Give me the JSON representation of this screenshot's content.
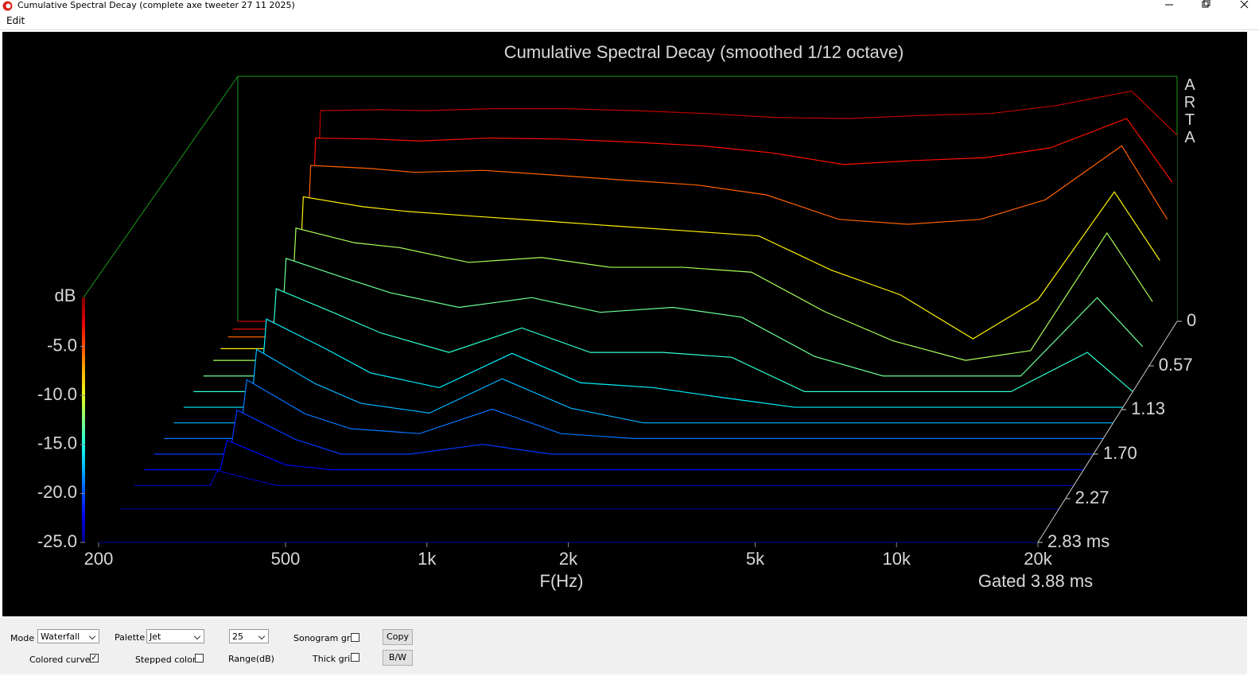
{
  "window": {
    "title": "Cumulative Spectral Decay  (complete axe tweeter 27 11 2025)",
    "menu": [
      "Edit"
    ]
  },
  "chart_data": {
    "type": "waterfall",
    "title": "Cumulative Spectral Decay (smoothed 1/12 octave)",
    "x_label": "F(Hz)",
    "y_label": "dB",
    "note": "Gated 3.88 ms",
    "watermark": "ARTA",
    "xlog": true,
    "xlim": [
      200,
      20000
    ],
    "xticks": [
      200,
      500,
      {
        "value": 1000,
        "label": "1k"
      },
      {
        "value": 2000,
        "label": "2k"
      },
      {
        "value": 5000,
        "label": "5k"
      },
      {
        "value": 10000,
        "label": "10k"
      },
      {
        "value": 20000,
        "label": "20k"
      }
    ],
    "ylim": [
      -25,
      0
    ],
    "yticks": [
      {
        "value": -5,
        "label": "-5.0"
      },
      {
        "value": -10,
        "label": "-10.0"
      },
      {
        "value": -15,
        "label": "-15.0"
      },
      {
        "value": -20,
        "label": "-20.0"
      },
      {
        "value": -25,
        "label": "-25.0"
      }
    ],
    "zlim": [
      0,
      2.83
    ],
    "zticks": [
      0,
      0.57,
      1.13,
      {
        "value": 1.7,
        "label": "1.70"
      },
      2.27,
      {
        "value": 2.83,
        "label": "2.83 ms"
      }
    ],
    "palette": "Jet",
    "x": [
      200,
      290,
      300,
      400,
      500,
      700,
      1000,
      1400,
      2000,
      2800,
      4000,
      5600,
      8000,
      11000,
      16000,
      20000
    ],
    "slices": [
      {
        "time": 0,
        "values": [
          -25,
          -25,
          -3.5,
          -3.4,
          -3.5,
          -3.3,
          -3.3,
          -3.5,
          -3.8,
          -4.2,
          -4.3,
          -4.0,
          -3.8,
          -3.0,
          -1.5,
          -6
        ]
      },
      {
        "time": 0.1,
        "values": [
          -25,
          -25,
          -5.5,
          -5.6,
          -5.8,
          -5.5,
          -5.6,
          -5.9,
          -6.3,
          -7.0,
          -8.2,
          -7.8,
          -7.5,
          -6.5,
          -3.5,
          -10
        ]
      },
      {
        "time": 0.2,
        "values": [
          -25,
          -25,
          -7.5,
          -7.8,
          -8.2,
          -8,
          -8.5,
          -9,
          -9.5,
          -10.5,
          -13,
          -13.5,
          -13,
          -11,
          -5.5,
          -13
        ]
      },
      {
        "time": 0.35,
        "values": [
          -25,
          -25,
          -9.5,
          -10.5,
          -11,
          -11.5,
          -12,
          -12.5,
          -13,
          -13.5,
          -17,
          -19.5,
          -24,
          -20,
          -9,
          -16
        ]
      },
      {
        "time": 0.5,
        "values": [
          -25,
          -25,
          -11.5,
          -13,
          -13.5,
          -15,
          -14.5,
          -15.5,
          -15.5,
          -16,
          -20,
          -23,
          -25,
          -24,
          -12,
          -19
        ]
      },
      {
        "time": 0.7,
        "values": [
          -25,
          -25,
          -13,
          -15,
          -16.5,
          -18,
          -17,
          -18.5,
          -18,
          -19,
          -23,
          -25,
          -25,
          -25,
          -17,
          -22
        ]
      },
      {
        "time": 0.9,
        "values": [
          -25,
          -25,
          -14.5,
          -17,
          -19,
          -21,
          -18.5,
          -21,
          -21,
          -21.5,
          -25,
          -25,
          -25,
          -25,
          -21,
          -25
        ]
      },
      {
        "time": 1.1,
        "values": [
          -25,
          -25,
          -16,
          -19,
          -21.5,
          -23,
          -19.5,
          -22.5,
          -23,
          -24,
          -25,
          -25,
          -25,
          -25,
          -25,
          -25
        ]
      },
      {
        "time": 1.3,
        "values": [
          -25,
          -25,
          -17.5,
          -21,
          -23,
          -24,
          -20.5,
          -23.5,
          -25,
          -25,
          -25,
          -25,
          -25,
          -25,
          -25,
          -25
        ]
      },
      {
        "time": 1.5,
        "values": [
          -25,
          -25,
          -19,
          -22.5,
          -24,
          -24.5,
          -22,
          -24.5,
          -25,
          -25,
          -25,
          -25,
          -25,
          -25,
          -25,
          -25
        ]
      },
      {
        "time": 1.7,
        "values": [
          -25,
          -25,
          -20.5,
          -23.5,
          -25,
          -25,
          -24,
          -25,
          -25,
          -25,
          -25,
          -25,
          -25,
          -25,
          -25,
          -25
        ]
      },
      {
        "time": 1.9,
        "values": [
          -25,
          -25,
          -22,
          -24.5,
          -25,
          -25,
          -25,
          -25,
          -25,
          -25,
          -25,
          -25,
          -25,
          -25,
          -25,
          -25
        ]
      },
      {
        "time": 2.1,
        "values": [
          -25,
          -25,
          -23.5,
          -25,
          -25,
          -25,
          -25,
          -25,
          -25,
          -25,
          -25,
          -25,
          -25,
          -25,
          -25,
          -25
        ]
      },
      {
        "time": 2.4,
        "values": [
          -25,
          -25,
          -25,
          -25,
          -25,
          -25,
          -25,
          -25,
          -25,
          -25,
          -25,
          -25,
          -25,
          -25,
          -25,
          -25
        ]
      },
      {
        "time": 2.83,
        "values": [
          -25,
          -25,
          -25,
          -25,
          -25,
          -25,
          -25,
          -25,
          -25,
          -25,
          -25,
          -25,
          -25,
          -25,
          -25,
          -25
        ]
      }
    ]
  },
  "controls": {
    "mode_label": "Mode",
    "mode": "Waterfall",
    "palette_label": "Palette",
    "palette": "Jet",
    "range": "25",
    "range_label": "Range(dB)",
    "sonogram_grid_label": "Sonogram grid",
    "sonogram_grid": false,
    "colored_curves_label": "Colored curves",
    "colored_curves": true,
    "stepped_colors_label": "Stepped colors",
    "stepped_colors": false,
    "thick_grid_label": "Thick grid",
    "thick_grid": false,
    "copy": "Copy",
    "bw": "B/W"
  }
}
